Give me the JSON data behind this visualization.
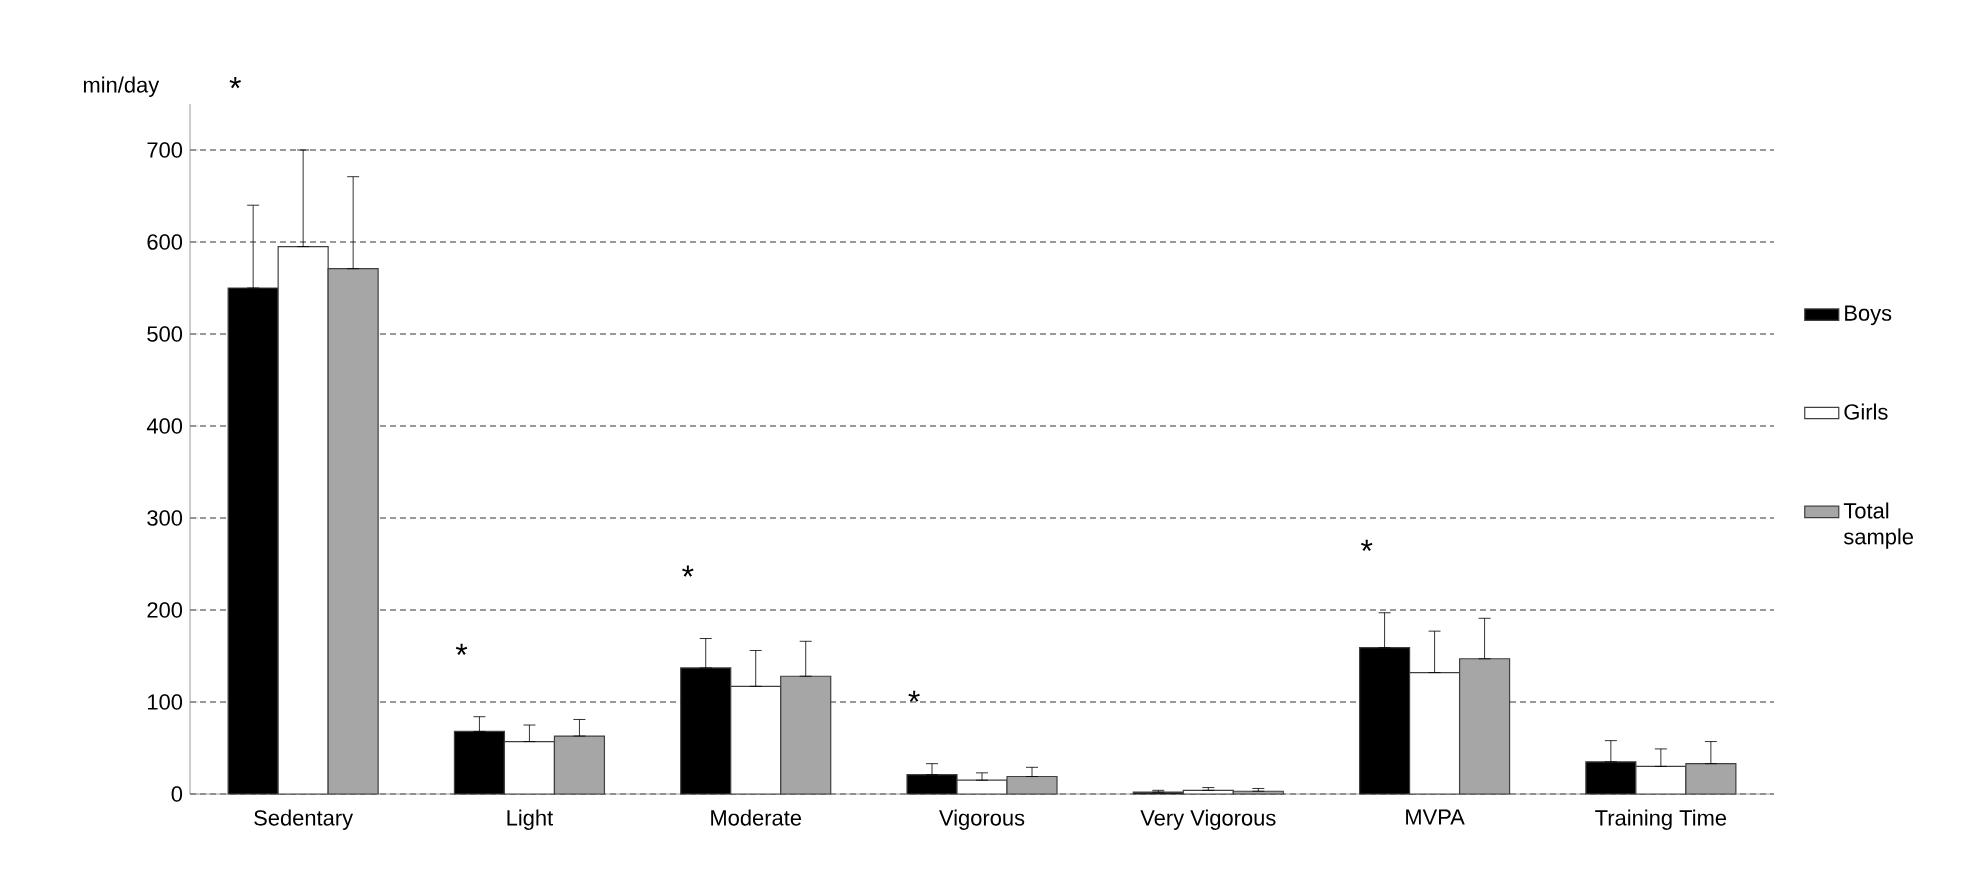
{
  "chart_data": {
    "type": "bar",
    "ylabel": "min/day",
    "categories": [
      "Sedentary",
      "Light",
      "Moderate",
      "Vigorous",
      "Very Vigorous",
      "MVPA",
      "Training Time"
    ],
    "series": [
      {
        "name": "Boys",
        "color": "#000000",
        "values": [
          550,
          68,
          137,
          21,
          2,
          159,
          35
        ],
        "errors": [
          [
            550,
            640
          ],
          [
            68,
            84
          ],
          [
            137,
            169
          ],
          [
            21,
            33
          ],
          [
            2,
            4
          ],
          [
            159,
            197
          ],
          [
            35,
            58
          ]
        ]
      },
      {
        "name": "Girls",
        "color": "#ffffff",
        "values": [
          595,
          57,
          117,
          15,
          4,
          132,
          30
        ],
        "errors": [
          [
            595,
            700
          ],
          [
            57,
            75
          ],
          [
            117,
            156
          ],
          [
            15,
            23
          ],
          [
            4,
            7
          ],
          [
            132,
            177
          ],
          [
            30,
            49
          ]
        ]
      },
      {
        "name": "Total sample",
        "color": "#a6a6a6",
        "values": [
          571,
          63,
          128,
          19,
          3,
          147,
          33
        ],
        "errors": [
          [
            571,
            671
          ],
          [
            63,
            81
          ],
          [
            128,
            166
          ],
          [
            19,
            29
          ],
          [
            3,
            6
          ],
          [
            147,
            191
          ],
          [
            33,
            57
          ]
        ]
      }
    ],
    "ylim": [
      0,
      750
    ],
    "yticks": [
      0,
      100,
      200,
      300,
      400,
      500,
      600,
      700
    ],
    "grid": "y",
    "legend": "right",
    "annotations": [
      "*",
      "*",
      "*",
      "*",
      "*"
    ]
  }
}
